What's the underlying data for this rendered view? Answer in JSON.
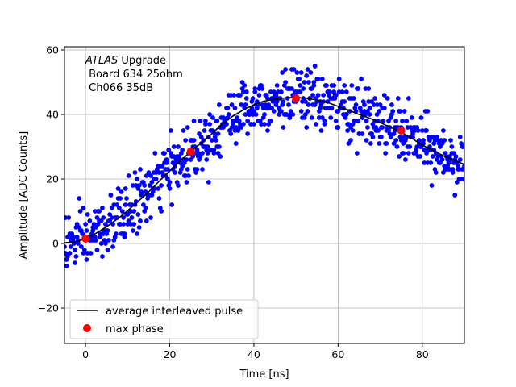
{
  "chart_data": {
    "type": "scatter",
    "title": "",
    "xlabel": "Time [ns]",
    "ylabel": "Amplitude [ADC Counts]",
    "xlim": [
      -5,
      90
    ],
    "ylim": [
      -31,
      61
    ],
    "xticks": [
      0,
      20,
      40,
      60,
      80
    ],
    "yticks": [
      -20,
      0,
      20,
      40,
      60
    ],
    "xtick_labels": [
      "0",
      "20",
      "40",
      "60",
      "80"
    ],
    "ytick_labels": [
      "−20",
      "0",
      "20",
      "40",
      "60"
    ],
    "grid": true,
    "legend_position": "lower-left",
    "annotation": {
      "italic": "ATLAS",
      "rest": " Upgrade",
      "line2": " Board 634 25ohm",
      "line3": " Ch066 35dB"
    },
    "series": [
      {
        "name": "average interleaved pulse",
        "kind": "line",
        "color": "#000000",
        "x": [
          -5,
          -2,
          0,
          2,
          5,
          8,
          10,
          12,
          15,
          18,
          20,
          22,
          25,
          28,
          30,
          32,
          35,
          38,
          40,
          42,
          45,
          48,
          50,
          52,
          55,
          58,
          60,
          62,
          65,
          68,
          70,
          72,
          75,
          78,
          80,
          82,
          85,
          88,
          90
        ],
        "y": [
          0.2,
          0.6,
          1.5,
          2.8,
          5.2,
          8.0,
          10.2,
          12.5,
          16.0,
          20.0,
          22.5,
          25.0,
          28.5,
          31.8,
          34.0,
          36.5,
          39.5,
          41.8,
          43.0,
          44.0,
          44.8,
          45.2,
          45.3,
          45.1,
          44.5,
          43.5,
          42.5,
          41.6,
          40.0,
          38.6,
          37.5,
          36.3,
          34.5,
          32.2,
          30.5,
          29.2,
          27.2,
          25.6,
          24.5
        ]
      },
      {
        "name": "max phase",
        "kind": "marker",
        "color": "#ff0000",
        "x": [
          0,
          25,
          50,
          75
        ],
        "y": [
          1.5,
          28.5,
          45,
          35
        ]
      }
    ],
    "scatter_cloud": {
      "color": "#0000ff",
      "x_start": -5,
      "x_end": 90,
      "x_step": 0.25,
      "samples_per_x": 2,
      "noise_amplitude": 4.5
    }
  }
}
